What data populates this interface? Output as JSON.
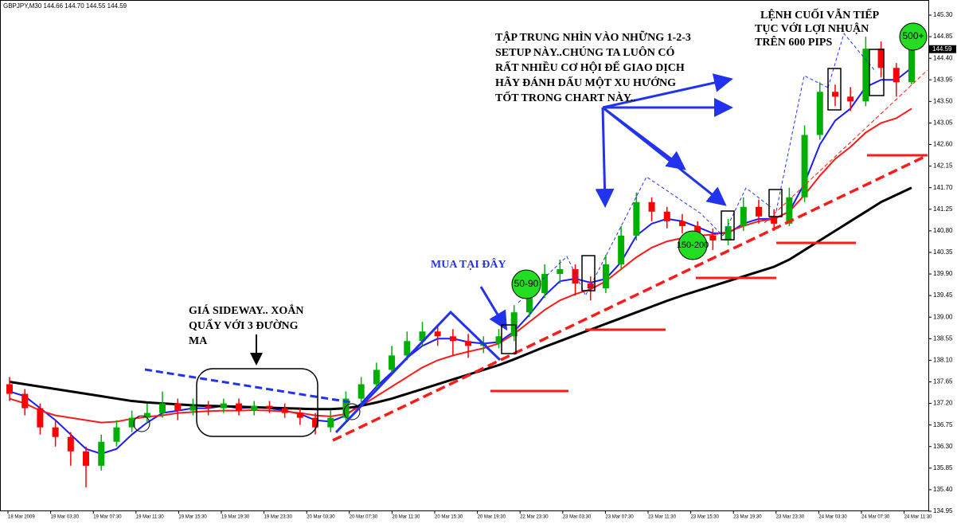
{
  "chart_data": {
    "type": "candlestick",
    "title": "GBPJPY,M30 144.66 144.70 144.55 144.59",
    "up_color": "#00b000",
    "down_color": "#ff0000",
    "open": [
      137.6,
      137.4,
      137.1,
      136.7,
      136.5,
      136.2,
      135.9,
      136.4,
      136.7,
      136.9,
      137.0,
      137.2,
      137.05,
      137.15,
      137.1,
      137.2,
      137.05,
      137.15,
      137.1,
      137.0,
      136.9,
      136.7,
      136.9,
      137.3,
      137.6,
      137.9,
      138.2,
      138.5,
      138.7,
      138.6,
      138.5,
      138.4,
      138.45,
      138.6,
      139.1,
      139.5,
      139.9,
      140.0,
      139.7,
      139.6,
      140.1,
      140.7,
      141.4,
      141.2,
      141.0,
      140.9,
      140.7,
      140.6,
      140.9,
      141.3,
      141.1,
      140.95,
      141.5,
      142.8,
      143.7,
      143.6,
      143.5,
      144.6,
      144.2,
      143.9
    ],
    "high": [
      137.75,
      137.5,
      137.2,
      136.85,
      136.6,
      136.3,
      136.55,
      136.85,
      137.05,
      137.2,
      137.45,
      137.3,
      137.3,
      137.25,
      137.3,
      137.3,
      137.25,
      137.25,
      137.2,
      137.1,
      137.0,
      137.05,
      137.45,
      137.75,
      138.05,
      138.4,
      138.7,
      138.9,
      138.85,
      138.75,
      138.65,
      138.6,
      138.75,
      139.25,
      139.65,
      140.1,
      140.2,
      140.1,
      139.85,
      140.3,
      140.9,
      141.6,
      141.5,
      141.3,
      141.15,
      141.0,
      140.85,
      141.05,
      141.5,
      141.45,
      141.25,
      141.7,
      143.0,
      143.9,
      143.85,
      143.8,
      144.85,
      144.75,
      144.3,
      144.7
    ],
    "low": [
      137.25,
      136.95,
      136.55,
      136.3,
      135.9,
      135.45,
      135.8,
      136.3,
      136.6,
      136.8,
      136.9,
      136.85,
      136.95,
      136.95,
      137.0,
      136.95,
      136.95,
      137.0,
      136.9,
      136.75,
      136.55,
      136.6,
      136.85,
      137.2,
      137.5,
      137.8,
      138.1,
      138.4,
      138.4,
      138.2,
      138.15,
      138.25,
      138.35,
      138.5,
      139.0,
      139.4,
      139.7,
      139.45,
      139.35,
      139.5,
      140.0,
      140.6,
      141.0,
      140.85,
      140.75,
      140.55,
      140.4,
      140.5,
      140.8,
      140.95,
      140.8,
      140.9,
      141.4,
      142.7,
      143.4,
      143.3,
      143.4,
      144.0,
      143.6,
      143.85
    ],
    "close": [
      137.4,
      137.1,
      136.7,
      136.5,
      136.2,
      135.9,
      136.4,
      136.7,
      136.9,
      137.0,
      137.2,
      137.05,
      137.15,
      137.1,
      137.2,
      137.05,
      137.15,
      137.1,
      137.0,
      136.9,
      136.7,
      136.9,
      137.3,
      137.6,
      137.9,
      138.2,
      138.5,
      138.7,
      138.6,
      138.5,
      138.4,
      138.45,
      138.6,
      139.1,
      139.5,
      139.9,
      140.0,
      139.7,
      139.6,
      140.1,
      140.7,
      141.4,
      141.2,
      141.0,
      140.9,
      140.7,
      140.6,
      140.9,
      141.3,
      141.1,
      140.95,
      141.5,
      142.8,
      143.7,
      143.6,
      143.5,
      144.6,
      144.2,
      143.9,
      144.59
    ],
    "moving_averages": [
      {
        "color": "#1a1aff",
        "values": [
          137.45,
          137.35,
          137.1,
          136.85,
          136.55,
          136.25,
          136.15,
          136.25,
          136.55,
          136.8,
          137.0,
          137.05,
          137.1,
          137.1,
          137.15,
          137.1,
          137.12,
          137.1,
          137.05,
          136.98,
          136.85,
          136.82,
          136.95,
          137.2,
          137.55,
          137.85,
          138.15,
          138.4,
          138.55,
          138.55,
          138.48,
          138.45,
          138.48,
          138.7,
          139.05,
          139.45,
          139.75,
          139.8,
          139.72,
          139.8,
          140.15,
          140.7,
          140.95,
          141.05,
          141.0,
          140.88,
          140.75,
          140.75,
          140.95,
          141.05,
          141.05,
          141.2,
          141.8,
          142.6,
          143.1,
          143.35,
          143.8,
          143.95,
          143.95,
          144.2
        ]
      },
      {
        "color": "#ff1a1a",
        "values": [
          137.3,
          137.2,
          137.05,
          136.95,
          136.9,
          136.85,
          136.8,
          136.82,
          136.88,
          136.92,
          136.95,
          137.0,
          137.02,
          137.04,
          137.05,
          137.05,
          137.06,
          137.05,
          137.03,
          137.0,
          136.95,
          136.93,
          136.98,
          137.15,
          137.35,
          137.55,
          137.75,
          137.95,
          138.1,
          138.2,
          138.28,
          138.35,
          138.45,
          138.65,
          138.9,
          139.15,
          139.35,
          139.48,
          139.58,
          139.75,
          140.0,
          140.25,
          140.45,
          140.58,
          140.65,
          140.7,
          140.72,
          140.78,
          140.9,
          141.0,
          141.05,
          141.2,
          141.55,
          141.95,
          142.3,
          142.55,
          142.85,
          143.05,
          143.15,
          143.35
        ]
      },
      {
        "color": "#000000",
        "values": [
          137.65,
          137.6,
          137.55,
          137.5,
          137.45,
          137.4,
          137.35,
          137.3,
          137.25,
          137.22,
          137.2,
          137.18,
          137.16,
          137.15,
          137.14,
          137.13,
          137.12,
          137.11,
          137.1,
          137.09,
          137.08,
          137.08,
          137.1,
          137.15,
          137.22,
          137.3,
          137.4,
          137.5,
          137.6,
          137.7,
          137.8,
          137.9,
          138.0,
          138.12,
          138.25,
          138.38,
          138.5,
          138.62,
          138.74,
          138.86,
          138.98,
          139.1,
          139.22,
          139.34,
          139.45,
          139.55,
          139.65,
          139.75,
          139.85,
          139.95,
          140.05,
          140.2,
          140.4,
          140.6,
          140.8,
          141.0,
          141.2,
          141.4,
          141.55,
          141.7
        ]
      }
    ],
    "ylim": [
      134.95,
      145.3
    ],
    "yticks": [
      134.95,
      {
        "value": 135.4,
        "label": "135.40"
      },
      135.85,
      {
        "value": 136.3,
        "label": "136.30"
      },
      136.75,
      {
        "value": 137.2,
        "label": "137.20"
      },
      137.65,
      {
        "value": 138.1,
        "label": "138.10"
      },
      138.55,
      {
        "value": 139.0,
        "label": "139.00"
      },
      139.45,
      {
        "value": 139.9,
        "label": "139.90"
      },
      140.35,
      {
        "value": 140.8,
        "label": "140.80"
      },
      141.25,
      {
        "value": 141.7,
        "label": "141.70"
      },
      142.15,
      {
        "value": 142.6,
        "label": "142.60"
      },
      143.05,
      {
        "value": 143.5,
        "label": "143.50"
      },
      143.95,
      {
        "value": 144.4,
        "label": "144.40"
      },
      144.85,
      {
        "value": 145.3,
        "label": "145.30"
      }
    ],
    "last_price": 144.59,
    "x_labels": [
      "18 Mar 2009",
      "19 Mar 03:30",
      "19 Mar 07:30",
      "19 Mar 11:30",
      "19 Mar 15:30",
      "19 Mar 19:30",
      "19 Mar 23:30",
      "20 Mar 03:30",
      "20 Mar 07:30",
      "20 Mar 11:30",
      "20 Mar 15:30",
      "20 Mar 19:30",
      "22 Mar 23:30",
      "23 Mar 03:30",
      "23 Mar 07:30",
      "23 Mar 11:30",
      "23 Mar 15:30",
      "23 Mar 19:30",
      "23 Mar 23:30",
      "24 Mar 03:30",
      "24 Mar 07:30",
      "24 Mar 11:30"
    ],
    "annotations": {
      "sideway": [
        "GIÁ SIDEWAY.. XOẮN",
        "QUẨY VỚI 3 ĐƯỜNG",
        "MA"
      ],
      "buy": "MUA TẠI ĐÂY",
      "focus": [
        "TẬP TRUNG NHÌN VÀO NHỮNG 1-2-3",
        "SETUP NÀY..CHÚNG TA LUÔN CÓ",
        "RẤT NHIỀU CƠ HỘI ĐỂ GIAO DỊCH",
        "HÃY ĐÁNH DẤU MỘT XU HƯỚNG",
        "TỐT TRONG CHART NÀY.."
      ],
      "last_order": [
        "LỆNH CUỐI VẪN TIẾP",
        "TỤC VỚI LỢI NHUẬN",
        "TRÊN 600 PIPS"
      ],
      "targets": [
        "50-90",
        "150-200",
        "500+"
      ]
    }
  }
}
